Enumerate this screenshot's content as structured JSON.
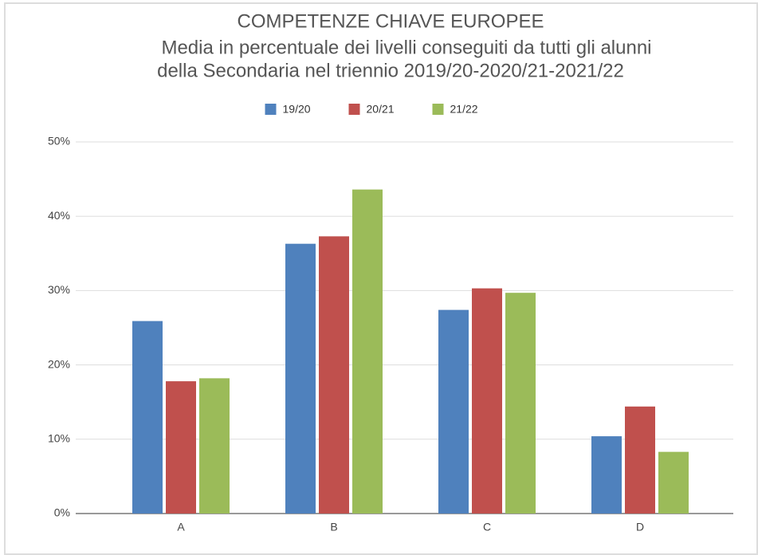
{
  "chart_data": {
    "type": "bar",
    "title": "COMPETENZE CHIAVE EUROPEE",
    "subtitle": [
      "Media in percentuale dei livelli conseguiti da tutti gli alunni",
      "della Secondaria nel triennio 2019/20-2020/21-2021/22"
    ],
    "categories": [
      "A",
      "B",
      "C",
      "D"
    ],
    "series": [
      {
        "name": "19/20",
        "color": "#4f81bd",
        "values": [
          25.9,
          36.3,
          27.4,
          10.4
        ]
      },
      {
        "name": "20/21",
        "color": "#c0504d",
        "values": [
          17.8,
          37.3,
          30.3,
          14.4
        ]
      },
      {
        "name": "21/22",
        "color": "#9bbb59",
        "values": [
          18.2,
          43.6,
          29.7,
          8.3
        ]
      }
    ],
    "ylim": [
      0,
      50
    ],
    "yticks": [
      {
        "value": 0,
        "label": "0%"
      },
      {
        "value": 10,
        "label": "10%"
      },
      {
        "value": 20,
        "label": "20%"
      },
      {
        "value": 30,
        "label": "30%"
      },
      {
        "value": 40,
        "label": "40%"
      },
      {
        "value": 50,
        "label": "50%"
      }
    ],
    "grid": true,
    "legend": "top"
  }
}
